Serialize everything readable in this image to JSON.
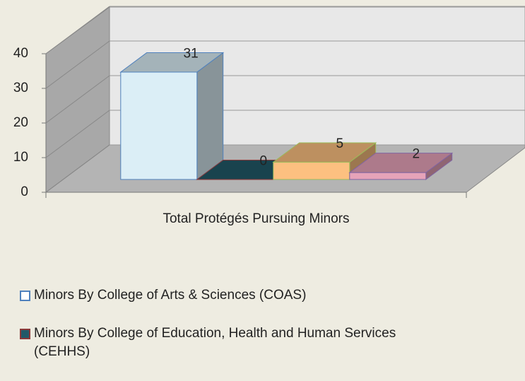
{
  "chart_data": {
    "type": "bar3d",
    "categories": [
      "Total Protégés Pursuing Minors"
    ],
    "series": [
      {
        "name": "Minors By College of Arts & Sciences (COAS)",
        "color": "#dbeef6",
        "values": [
          31
        ]
      },
      {
        "name": "Minors By College of Education, Health and Human Services (CEHHS)",
        "color": "#215968",
        "values": [
          0
        ]
      },
      {
        "color": "#fcc080",
        "values": [
          5
        ]
      },
      {
        "color": "#e6a3b9",
        "values": [
          2
        ]
      }
    ],
    "ylim": [
      0,
      40
    ],
    "yticks": [
      0,
      10,
      20,
      30,
      40
    ],
    "grid": true
  }
}
